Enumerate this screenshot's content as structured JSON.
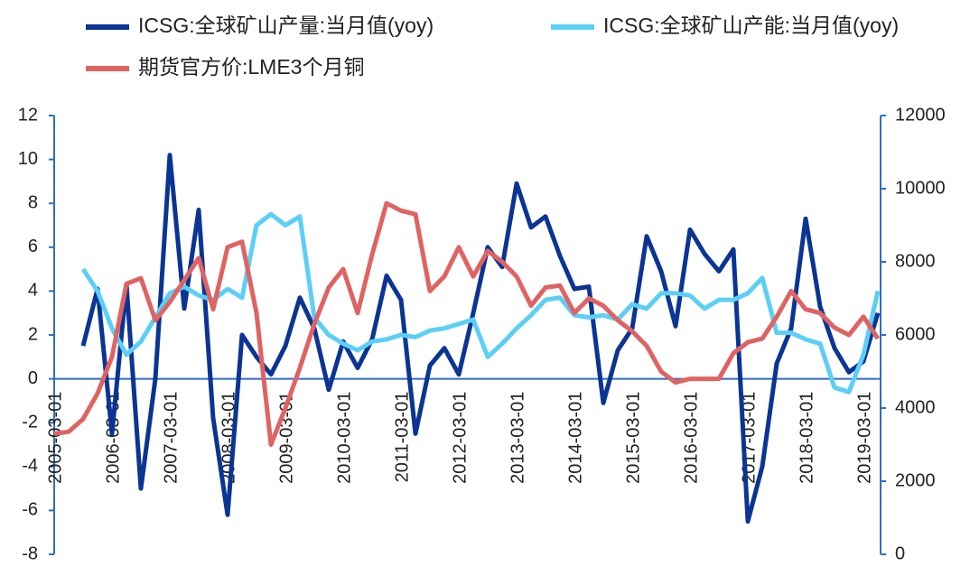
{
  "chart_data": {
    "type": "line",
    "categories": [
      "2005-03-01",
      null,
      null,
      null,
      "2006-03-01",
      null,
      null,
      null,
      "2007-03-01",
      null,
      null,
      null,
      "2008-03-01",
      null,
      null,
      null,
      "2009-03-01",
      null,
      null,
      null,
      "2010-03-01",
      null,
      null,
      null,
      "2011-03-01",
      null,
      null,
      null,
      "2012-03-01",
      null,
      null,
      null,
      "2013-03-01",
      null,
      null,
      null,
      "2014-03-01",
      null,
      null,
      null,
      "2015-03-01",
      null,
      null,
      null,
      "2016-03-01",
      null,
      null,
      null,
      "2017-03-01",
      null,
      null,
      null,
      "2018-03-01",
      null,
      null,
      null,
      "2019-03-01",
      null
    ],
    "series": [
      {
        "name": "ICSG:全球矿山产量:当月值(yoy)",
        "color": "#0b3594",
        "values": [
          null,
          null,
          1.5,
          4.1,
          -2.5,
          4.3,
          -5,
          0,
          10.2,
          3.2,
          7.7,
          -1.8,
          -6.2,
          2.0,
          1.0,
          0.2,
          1.5,
          3.7,
          2.3,
          -0.5,
          1.7,
          0.5,
          1.8,
          4.7,
          3.6,
          -2.5,
          0.6,
          1.4,
          0.2,
          3.0,
          6.0,
          5.1,
          8.9,
          6.9,
          7.4,
          5.6,
          4.1,
          4.2,
          -1.1,
          1.3,
          2.3,
          6.5,
          4.9,
          2.4,
          6.8,
          5.7,
          4.9,
          5.9,
          -6.5,
          -4.0,
          0.7,
          2.3,
          7.3,
          3.3,
          1.4,
          0.3,
          0.8,
          3.0
        ]
      },
      {
        "name": "ICSG:全球矿山产能:当月值(yoy)",
        "color": "#5bcff6",
        "values": [
          null,
          null,
          5.0,
          4.0,
          2.3,
          1.1,
          1.7,
          2.8,
          3.9,
          4.2,
          3.8,
          3.6,
          4.1,
          3.7,
          7.0,
          7.5,
          7.0,
          7.4,
          2.8,
          2.0,
          1.6,
          1.3,
          1.7,
          1.8,
          2.0,
          1.9,
          2.2,
          2.3,
          2.5,
          2.7,
          1.0,
          1.6,
          2.3,
          2.9,
          3.6,
          3.7,
          2.9,
          2.8,
          2.9,
          2.7,
          3.4,
          3.2,
          3.9,
          3.9,
          3.8,
          3.2,
          3.6,
          3.6,
          3.9,
          4.6,
          2.1,
          2.1,
          1.8,
          1.6,
          -0.4,
          -0.6,
          1.1,
          4.0
        ]
      },
      {
        "name": "期货官方价:LME3个月铜",
        "color": "#e06363",
        "axis": "y2",
        "values": [
          3300,
          3350,
          3700,
          4400,
          5400,
          7400,
          7550,
          6400,
          6900,
          7500,
          8100,
          6700,
          8400,
          8550,
          6600,
          3000,
          4000,
          5100,
          6300,
          7300,
          7800,
          6600,
          8200,
          9600,
          9400,
          9300,
          7200,
          7600,
          8400,
          7600,
          8300,
          8000,
          7600,
          6800,
          7300,
          7350,
          6600,
          7000,
          6800,
          6400,
          6100,
          5700,
          5000,
          4700,
          4800,
          4800,
          4800,
          5500,
          5800,
          5900,
          6500,
          7200,
          6700,
          6600,
          6200,
          6000,
          6500,
          5900
        ]
      }
    ],
    "ylim": [
      -8,
      12
    ],
    "yticks": [
      -8,
      -6,
      -4,
      -2,
      0,
      2,
      4,
      6,
      8,
      10,
      12
    ],
    "y2lim": [
      0,
      12000
    ],
    "y2ticks": [
      0,
      2000,
      4000,
      6000,
      8000,
      10000,
      12000
    ],
    "axis_color": "#2e6ec4"
  }
}
